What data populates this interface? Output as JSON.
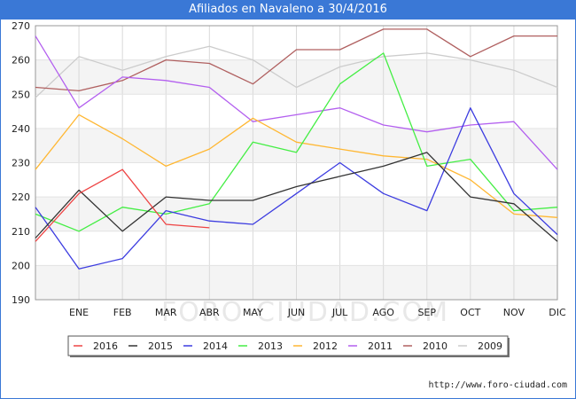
{
  "title": "Afiliados en Navaleno a 30/4/2016",
  "footer": "http://www.foro-ciudad.com",
  "watermark": "FORO-CIUDAD.COM",
  "chart_data": {
    "type": "line",
    "categories": [
      "",
      "ENE",
      "FEB",
      "MAR",
      "ABR",
      "MAY",
      "JUN",
      "JUL",
      "AGO",
      "SEP",
      "OCT",
      "NOV",
      "DIC"
    ],
    "ylim": [
      190,
      270
    ],
    "yticks": [
      190,
      200,
      210,
      220,
      230,
      240,
      250,
      260,
      270
    ],
    "grid": true,
    "legend_position": "bottom",
    "series": [
      {
        "name": "2016",
        "color": "#ee4444",
        "values": [
          207,
          221,
          228,
          212,
          211,
          null,
          null,
          null,
          null,
          null,
          null,
          null,
          null
        ]
      },
      {
        "name": "2015",
        "color": "#333333",
        "values": [
          208,
          222,
          210,
          220,
          219,
          219,
          223,
          226,
          229,
          233,
          220,
          218,
          207
        ]
      },
      {
        "name": "2014",
        "color": "#3c3ce0",
        "values": [
          217,
          199,
          202,
          216,
          213,
          212,
          221,
          230,
          221,
          216,
          246,
          221,
          209
        ]
      },
      {
        "name": "2013",
        "color": "#44ee44",
        "values": [
          215,
          210,
          217,
          215,
          218,
          236,
          233,
          253,
          262,
          229,
          231,
          216,
          217
        ]
      },
      {
        "name": "2012",
        "color": "#ffb732",
        "values": [
          228,
          244,
          237,
          229,
          234,
          243,
          236,
          234,
          232,
          231,
          225,
          215,
          214
        ]
      },
      {
        "name": "2011",
        "color": "#b35fef",
        "values": [
          267,
          246,
          255,
          254,
          252,
          242,
          244,
          246,
          241,
          239,
          241,
          242,
          228
        ]
      },
      {
        "name": "2010",
        "color": "#b06060",
        "values": [
          252,
          251,
          254,
          260,
          259,
          253,
          263,
          263,
          269,
          269,
          261,
          267,
          267
        ]
      },
      {
        "name": "2009",
        "color": "#cccccc",
        "values": [
          249,
          261,
          257,
          261,
          264,
          260,
          252,
          258,
          261,
          262,
          260,
          257,
          252
        ]
      }
    ]
  }
}
